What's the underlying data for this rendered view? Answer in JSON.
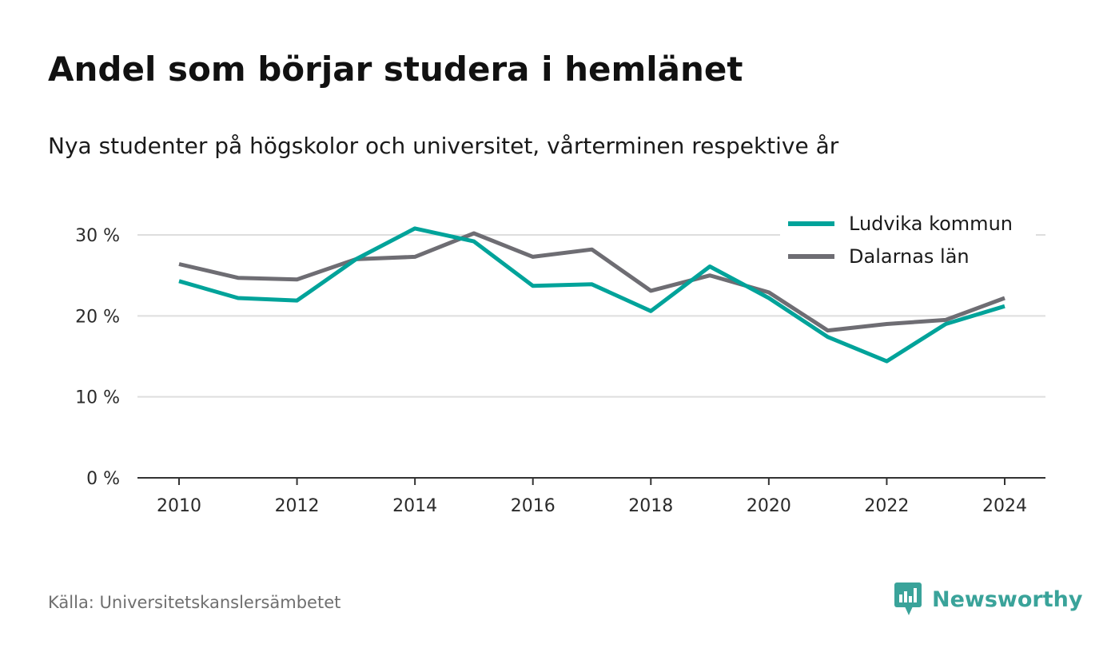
{
  "title": "Andel som börjar studera i hemlänet",
  "subtitle": "Nya studenter på högskolor och universitet, vårterminen respektive år",
  "source": "Källa: Universitetskanslersämbetet",
  "brand": {
    "name": "Newsworthy",
    "icon": "newsworthy-logo-icon",
    "color": "#3aa39a"
  },
  "chart_data": {
    "type": "line",
    "x": [
      2010,
      2011,
      2012,
      2013,
      2014,
      2015,
      2016,
      2017,
      2018,
      2019,
      2020,
      2021,
      2022,
      2023,
      2024
    ],
    "x_ticks": [
      2010,
      2012,
      2014,
      2016,
      2018,
      2020,
      2022,
      2024
    ],
    "x_tick_labels": [
      "2010",
      "2012",
      "2014",
      "2016",
      "2018",
      "2020",
      "2022",
      "2024"
    ],
    "y_ticks": [
      0,
      10,
      20,
      30
    ],
    "y_tick_labels": [
      "0 %",
      "10 %",
      "20 %",
      "30 %"
    ],
    "ylim": [
      0,
      30
    ],
    "grid": true,
    "legend_position": "top-right",
    "series": [
      {
        "name": "Ludvika kommun",
        "color": "#00a39a",
        "values": [
          24.3,
          22.2,
          21.9,
          27.0,
          30.8,
          29.2,
          23.7,
          23.9,
          20.6,
          26.1,
          22.2,
          17.4,
          14.4,
          19.0,
          21.2
        ]
      },
      {
        "name": "Dalarnas län",
        "color": "#6e6d73",
        "values": [
          26.4,
          24.7,
          24.5,
          27.0,
          27.3,
          30.2,
          27.3,
          28.2,
          23.1,
          25.0,
          22.9,
          18.2,
          19.0,
          19.5,
          22.2
        ]
      }
    ]
  }
}
